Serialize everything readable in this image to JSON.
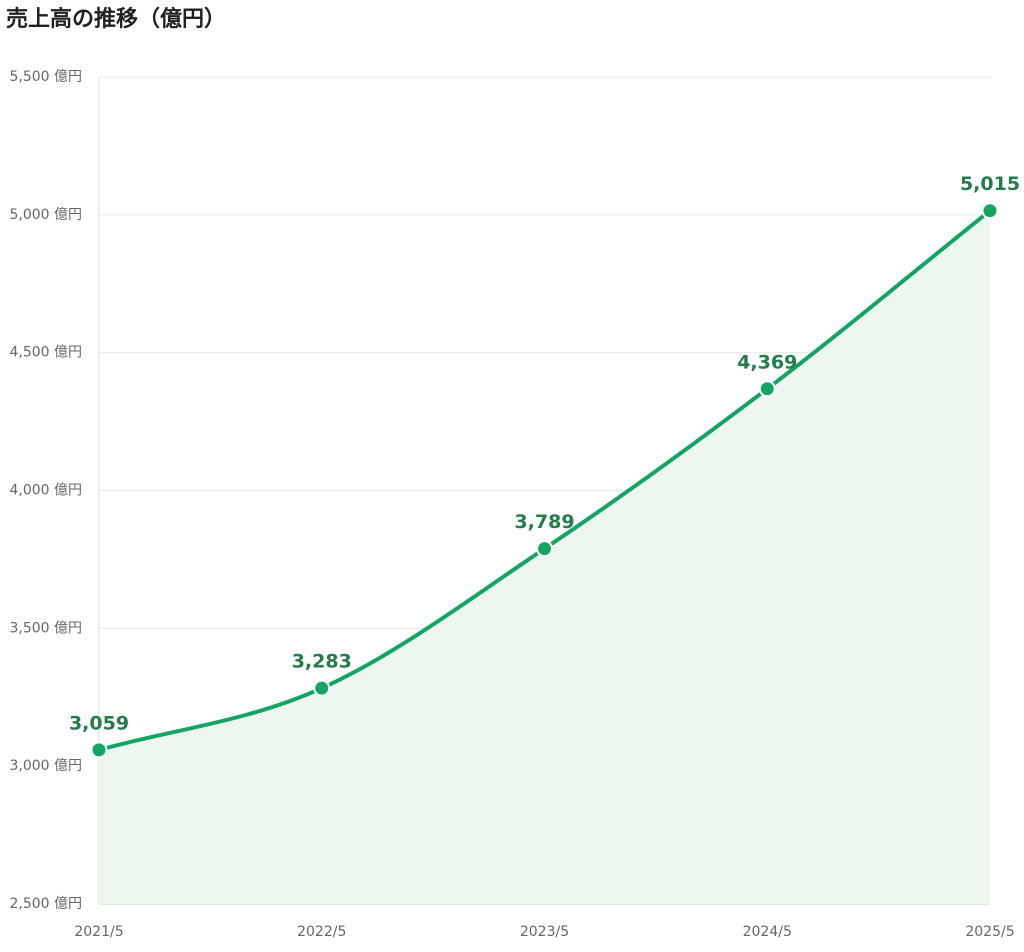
{
  "chart_data": {
    "type": "area-line",
    "title": "売上高の推移（億円）",
    "categories": [
      "2021/5",
      "2022/5",
      "2023/5",
      "2024/5",
      "2025/5"
    ],
    "values": [
      3059,
      3283,
      3789,
      4369,
      5015
    ],
    "value_labels": [
      "3,059",
      "3,283",
      "3,789",
      "4,369",
      "5,015"
    ],
    "color": "#14a463",
    "area_color": "#edf7f0",
    "label_color": "#227c4b",
    "ylim": [
      2500,
      5500
    ],
    "yticks": [
      {
        "value": 2500,
        "label": "2,500 億円"
      },
      {
        "value": 3000,
        "label": "3,000 億円"
      },
      {
        "value": 3500,
        "label": "3,500 億円"
      },
      {
        "value": 4000,
        "label": "4,000 億円"
      },
      {
        "value": 4500,
        "label": "4,500 億円"
      },
      {
        "value": 5000,
        "label": "5,000 億円"
      },
      {
        "value": 5500,
        "label": "5,500 億円"
      }
    ],
    "grid": true
  }
}
